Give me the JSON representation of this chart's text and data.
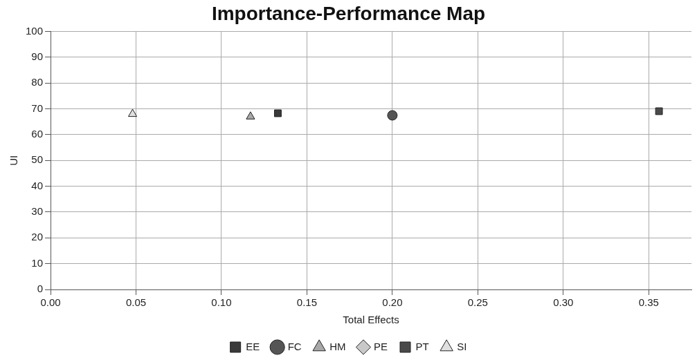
{
  "chart_data": {
    "type": "scatter",
    "title": "Importance-Performance Map",
    "xlabel": "Total Effects",
    "ylabel": "UI",
    "xlim": [
      0,
      0.375
    ],
    "xticks": [
      {
        "value": 0,
        "label": "0.00"
      },
      {
        "value": 0.05,
        "label": "0.05"
      },
      {
        "value": 0.1,
        "label": "0.10"
      },
      {
        "value": 0.15,
        "label": "0.15"
      },
      {
        "value": 0.2,
        "label": "0.20"
      },
      {
        "value": 0.25,
        "label": "0.25"
      },
      {
        "value": 0.3,
        "label": "0.30"
      },
      {
        "value": 0.35,
        "label": "0.35"
      }
    ],
    "ylim": [
      0,
      100
    ],
    "yticks": [
      0,
      10,
      20,
      30,
      40,
      50,
      60,
      70,
      80,
      90,
      100
    ],
    "grid": true,
    "legend": "bottom",
    "series": [
      {
        "name": "EE",
        "color": "#3a3a3a",
        "marker": "square",
        "x": [
          0.133
        ],
        "values": [
          68.3
        ]
      },
      {
        "name": "FC",
        "color": "#555555",
        "marker": "circle",
        "x": [
          0.2
        ],
        "values": [
          67.5
        ]
      },
      {
        "name": "HM",
        "color": "#a8a8a8",
        "marker": "triangle",
        "x": [
          0.117
        ],
        "values": [
          67
        ]
      },
      {
        "name": "PE",
        "color": "#c8c8c8",
        "marker": "diamond",
        "x": [
          null
        ],
        "values": [
          null
        ]
      },
      {
        "name": "PT",
        "color": "#4a4a4a",
        "marker": "square",
        "x": [
          0.356
        ],
        "values": [
          69.1
        ]
      },
      {
        "name": "SI",
        "color": "#e0e0e0",
        "marker": "triangle",
        "x": [
          0.048
        ],
        "values": [
          68
        ]
      }
    ]
  }
}
